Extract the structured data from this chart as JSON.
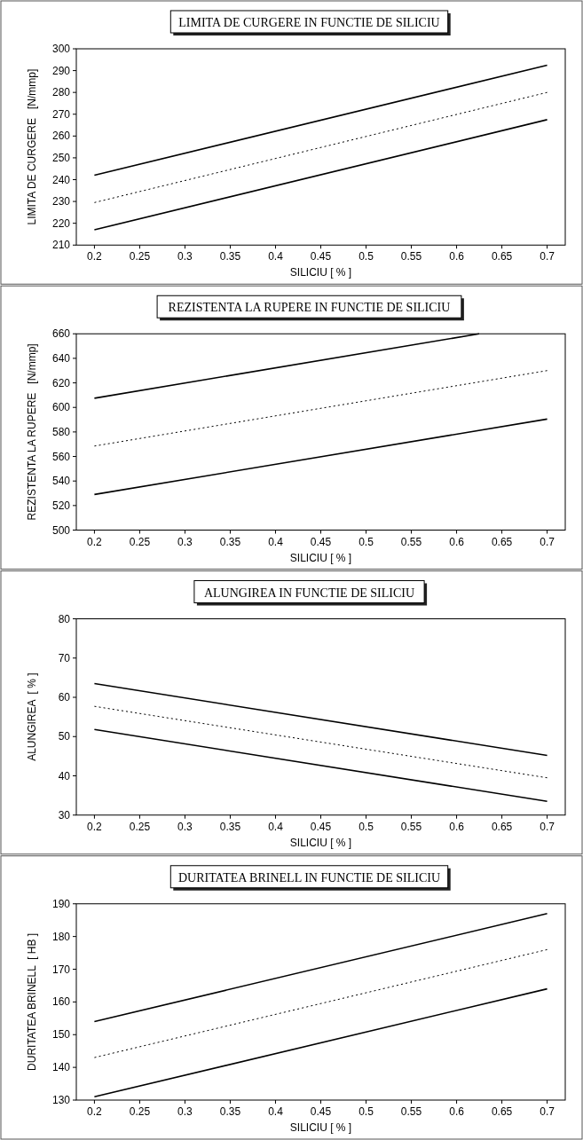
{
  "chart_data": [
    {
      "type": "line",
      "title": "LIMITA DE CURGERE IN FUNCTIE DE SILICIU",
      "xlabel": "SILICIU [ % ]",
      "ylabel": "LIMITA DE CURGERE   [N/mmp]",
      "xlim": [
        0.18,
        0.72
      ],
      "xticks": [
        0.2,
        0.25,
        0.3,
        0.35,
        0.4,
        0.45,
        0.5,
        0.55,
        0.6,
        0.65,
        0.7
      ],
      "ylim": [
        210,
        300
      ],
      "yticks": [
        210,
        220,
        230,
        240,
        250,
        260,
        270,
        280,
        290,
        300
      ],
      "grid": false,
      "series": [
        {
          "color": "#000000",
          "line_style": "solid",
          "x": [
            0.2,
            0.7
          ],
          "values": [
            242,
            292.5
          ]
        },
        {
          "color": "#000000",
          "line_style": "dotted",
          "x": [
            0.2,
            0.7
          ],
          "values": [
            229.5,
            280
          ]
        },
        {
          "color": "#000000",
          "line_style": "solid",
          "x": [
            0.2,
            0.7
          ],
          "values": [
            217,
            267.5
          ]
        }
      ]
    },
    {
      "type": "line",
      "title": "REZISTENTA LA RUPERE  IN FUNCTIE DE SILICIU",
      "xlabel": "SILICIU [ % ]",
      "ylabel": "REZISTENTA LA RUPERE   [N/mmp]",
      "xlim": [
        0.18,
        0.72
      ],
      "xticks": [
        0.2,
        0.25,
        0.3,
        0.35,
        0.4,
        0.45,
        0.5,
        0.55,
        0.6,
        0.65,
        0.7
      ],
      "ylim": [
        500,
        660
      ],
      "yticks": [
        500,
        520,
        540,
        560,
        580,
        600,
        620,
        640,
        660
      ],
      "grid": false,
      "series": [
        {
          "color": "#000000",
          "line_style": "solid",
          "x": [
            0.2,
            0.625
          ],
          "values": [
            607.5,
            660
          ]
        },
        {
          "color": "#000000",
          "line_style": "dotted",
          "x": [
            0.2,
            0.7
          ],
          "values": [
            568.5,
            630
          ]
        },
        {
          "color": "#000000",
          "line_style": "solid",
          "x": [
            0.2,
            0.7
          ],
          "values": [
            529,
            590.5
          ]
        }
      ]
    },
    {
      "type": "line",
      "title": "ALUNGIREA  IN FUNCTIE DE SILICIU",
      "xlabel": "SILICIU [ % ]",
      "ylabel": "ALUNGIREA  [ % ]",
      "xlim": [
        0.18,
        0.72
      ],
      "xticks": [
        0.2,
        0.25,
        0.3,
        0.35,
        0.4,
        0.45,
        0.5,
        0.55,
        0.6,
        0.65,
        0.7
      ],
      "ylim": [
        30,
        80
      ],
      "yticks": [
        30,
        40,
        50,
        60,
        70,
        80
      ],
      "grid": false,
      "series": [
        {
          "color": "#000000",
          "line_style": "solid",
          "x": [
            0.2,
            0.7
          ],
          "values": [
            63.5,
            45.2
          ]
        },
        {
          "color": "#000000",
          "line_style": "dotted",
          "x": [
            0.2,
            0.7
          ],
          "values": [
            57.7,
            39.5
          ]
        },
        {
          "color": "#000000",
          "line_style": "solid",
          "x": [
            0.2,
            0.7
          ],
          "values": [
            51.8,
            33.5
          ]
        }
      ]
    },
    {
      "type": "line",
      "title": "DURITATEA BRINELL IN FUNCTIE DE SILICIU",
      "xlabel": "SILICIU [ % ]",
      "ylabel": "DURITATEA BRINELL  [ HB ]",
      "xlim": [
        0.18,
        0.72
      ],
      "xticks": [
        0.2,
        0.25,
        0.3,
        0.35,
        0.4,
        0.45,
        0.5,
        0.55,
        0.6,
        0.65,
        0.7
      ],
      "ylim": [
        130,
        190
      ],
      "yticks": [
        130,
        140,
        150,
        160,
        170,
        180,
        190
      ],
      "grid": false,
      "series": [
        {
          "color": "#000000",
          "line_style": "solid",
          "x": [
            0.2,
            0.7
          ],
          "values": [
            154,
            187
          ]
        },
        {
          "color": "#000000",
          "line_style": "dotted",
          "x": [
            0.2,
            0.7
          ],
          "values": [
            143,
            176
          ]
        },
        {
          "color": "#000000",
          "line_style": "solid",
          "x": [
            0.2,
            0.7
          ],
          "values": [
            131,
            164
          ]
        }
      ]
    }
  ]
}
